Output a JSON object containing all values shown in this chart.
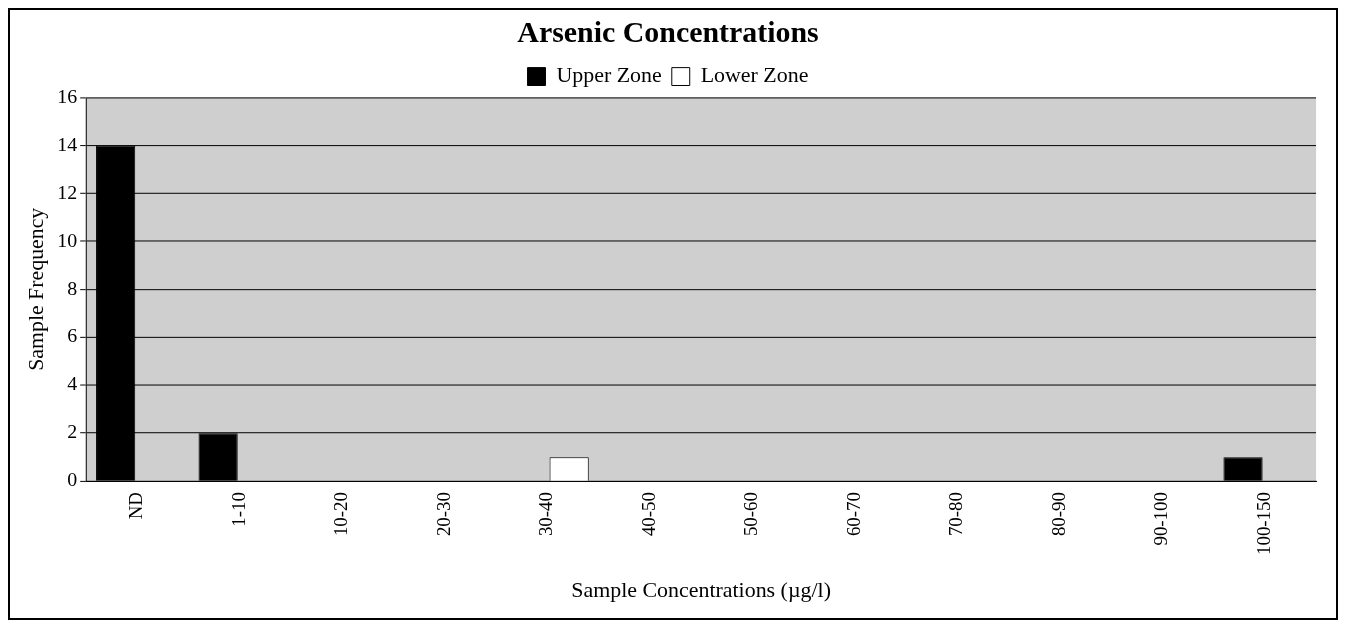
{
  "chart_data": {
    "type": "bar",
    "title": "Arsenic Concentrations",
    "xlabel": "Sample Concentrations (µg/l)",
    "ylabel": "Sample Frequency",
    "categories": [
      "ND",
      "1-10",
      "10-20",
      "20-30",
      "30-40",
      "40-50",
      "50-60",
      "60-70",
      "70-80",
      "80-90",
      "90-100",
      "100-150"
    ],
    "series": [
      {
        "name": "Upper Zone",
        "color": "#000000",
        "values": [
          14,
          2,
          0,
          0,
          0,
          0,
          0,
          0,
          0,
          0,
          0,
          1
        ]
      },
      {
        "name": "Lower Zone",
        "color": "#ffffff",
        "values": [
          0,
          0,
          0,
          0,
          1,
          0,
          0,
          0,
          0,
          0,
          0,
          0
        ]
      }
    ],
    "ylim": [
      0,
      16
    ],
    "yticks": [
      0,
      2,
      4,
      6,
      8,
      10,
      12,
      14,
      16
    ],
    "grid": "y",
    "legend": "top"
  }
}
